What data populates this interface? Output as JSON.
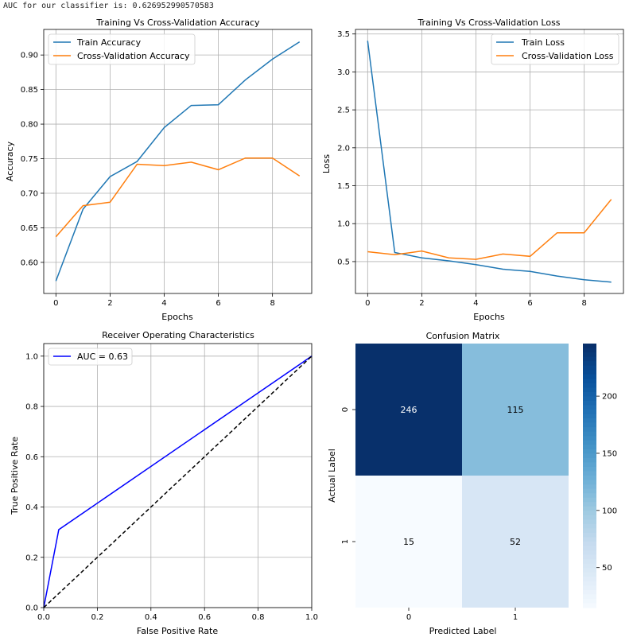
{
  "header": {
    "auc_text": "AUC for our classifier is: 0.626952990570583"
  },
  "colors": {
    "train": "#1f77b4",
    "val": "#ff7f0e",
    "roc": "#0000ff",
    "diag": "#000000",
    "grid": "#b0b0b0"
  },
  "chart_data": [
    {
      "id": "accuracy",
      "type": "line",
      "title": "Training Vs Cross-Validation Accuracy",
      "xlabel": "Epochs",
      "ylabel": "Accuracy",
      "xlim": [
        -0.45,
        9.45
      ],
      "ylim": [
        0.555,
        0.937
      ],
      "xticks": [
        0,
        2,
        4,
        6,
        8
      ],
      "yticks": [
        0.6,
        0.65,
        0.7,
        0.75,
        0.8,
        0.85,
        0.9
      ],
      "ytick_labels": [
        "0.60",
        "0.65",
        "0.70",
        "0.75",
        "0.80",
        "0.85",
        "0.90"
      ],
      "grid": true,
      "legend": "upper-left",
      "x": [
        0,
        1,
        2,
        3,
        4,
        5,
        6,
        7,
        8,
        9
      ],
      "series": [
        {
          "name": "Train Accuracy",
          "color": "#1f77b4",
          "values": [
            0.573,
            0.677,
            0.724,
            0.746,
            0.795,
            0.827,
            0.828,
            0.864,
            0.894,
            0.919
          ]
        },
        {
          "name": "Cross-Validation Accuracy",
          "color": "#ff7f0e",
          "values": [
            0.637,
            0.682,
            0.687,
            0.742,
            0.74,
            0.745,
            0.734,
            0.751,
            0.751,
            0.725
          ]
        }
      ]
    },
    {
      "id": "loss",
      "type": "line",
      "title": "Training Vs Cross-Validation Loss",
      "xlabel": "Epochs",
      "ylabel": "Loss",
      "xlim": [
        -0.45,
        9.45
      ],
      "ylim": [
        0.08,
        3.56
      ],
      "xticks": [
        0,
        2,
        4,
        6,
        8
      ],
      "yticks": [
        0.5,
        1.0,
        1.5,
        2.0,
        2.5,
        3.0,
        3.5
      ],
      "ytick_labels": [
        "0.5",
        "1.0",
        "1.5",
        "2.0",
        "2.5",
        "3.0",
        "3.5"
      ],
      "grid": true,
      "legend": "upper-right",
      "x": [
        0,
        1,
        2,
        3,
        4,
        5,
        6,
        7,
        8,
        9
      ],
      "series": [
        {
          "name": "Train Loss",
          "color": "#1f77b4",
          "values": [
            3.41,
            0.62,
            0.55,
            0.51,
            0.46,
            0.4,
            0.37,
            0.31,
            0.26,
            0.23
          ]
        },
        {
          "name": "Cross-Validation Loss",
          "color": "#ff7f0e",
          "values": [
            0.63,
            0.59,
            0.64,
            0.55,
            0.53,
            0.6,
            0.57,
            0.88,
            0.88,
            1.32
          ]
        }
      ]
    },
    {
      "id": "roc",
      "type": "line",
      "title": "Receiver Operating Characteristics",
      "xlabel": "False Positive Rate",
      "ylabel": "True Positive Rate",
      "xlim": [
        0,
        1
      ],
      "ylim": [
        0,
        1.05
      ],
      "xticks": [
        0,
        0.2,
        0.4,
        0.6,
        0.8,
        1.0
      ],
      "xtick_labels": [
        "0.0",
        "0.2",
        "0.4",
        "0.6",
        "0.8",
        "1.0"
      ],
      "yticks": [
        0,
        0.2,
        0.4,
        0.6,
        0.8,
        1.0
      ],
      "ytick_labels": [
        "0.0",
        "0.2",
        "0.4",
        "0.6",
        "0.8",
        "1.0"
      ],
      "grid": true,
      "legend": "upper-left",
      "series": [
        {
          "name": "AUC = 0.63",
          "color": "#0000ff",
          "x": [
            0,
            0.056,
            1
          ],
          "values": [
            0,
            0.31,
            1
          ]
        },
        {
          "name": "",
          "color": "#000000",
          "dashed": true,
          "x": [
            0,
            1
          ],
          "values": [
            0,
            1
          ]
        }
      ]
    },
    {
      "id": "confusion",
      "type": "heatmap",
      "title": "Confusion Matrix",
      "xlabel": "Predicted Label",
      "ylabel": "Actual Label",
      "x_categories": [
        "0",
        "1"
      ],
      "y_categories": [
        "0",
        "1"
      ],
      "values": [
        [
          246,
          115
        ],
        [
          15,
          52
        ]
      ],
      "colorbar_ticks": [
        50,
        100,
        150,
        200
      ],
      "vmin": 15,
      "vmax": 246,
      "colormap": "Blues"
    }
  ]
}
